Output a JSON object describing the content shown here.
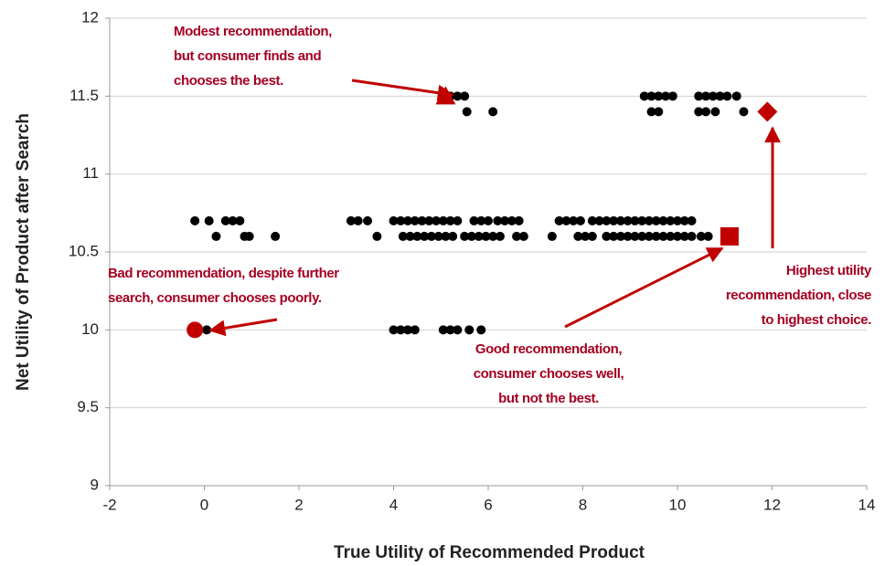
{
  "chart_data": {
    "type": "scatter",
    "xlabel": "True Utility of Recommended Product",
    "ylabel": "Net Utility of Product after Search",
    "xlim": [
      -2,
      14
    ],
    "xticks": [
      -2,
      0,
      2,
      4,
      6,
      8,
      10,
      12,
      14
    ],
    "ylim": [
      9,
      12
    ],
    "yticks": [
      9,
      9.5,
      10,
      10.5,
      11,
      11.5,
      12
    ],
    "grid": true,
    "series": [
      {
        "color": "#000000",
        "marker": "circle",
        "x": [
          -0.2,
          0.1,
          0.45,
          0.6,
          0.75,
          3.1,
          3.25,
          3.45,
          4.0,
          4.15,
          4.3,
          4.45,
          4.6,
          4.75,
          4.9,
          5.05,
          5.2,
          5.35,
          5.7,
          5.85,
          6.0,
          6.2,
          6.35,
          6.5,
          6.65,
          7.5,
          7.65,
          7.8,
          7.95,
          8.2,
          8.35,
          8.5,
          8.65,
          8.8,
          8.95,
          9.1,
          9.25,
          9.4,
          9.55,
          9.7,
          9.85,
          10.0,
          10.15,
          10.3
        ],
        "values": [
          10.7,
          10.7,
          10.7,
          10.7,
          10.7,
          10.7,
          10.7,
          10.7,
          10.7,
          10.7,
          10.7,
          10.7,
          10.7,
          10.7,
          10.7,
          10.7,
          10.7,
          10.7,
          10.7,
          10.7,
          10.7,
          10.7,
          10.7,
          10.7,
          10.7,
          10.7,
          10.7,
          10.7,
          10.7,
          10.7,
          10.7,
          10.7,
          10.7,
          10.7,
          10.7,
          10.7,
          10.7,
          10.7,
          10.7,
          10.7,
          10.7,
          10.7,
          10.7,
          10.7
        ]
      },
      {
        "color": "#000000",
        "marker": "circle",
        "x": [
          0.25,
          0.85,
          0.95,
          1.5,
          3.65,
          4.2,
          4.35,
          4.5,
          4.65,
          4.8,
          4.95,
          5.1,
          5.25,
          5.5,
          5.65,
          5.8,
          5.95,
          6.1,
          6.25,
          6.6,
          6.75,
          7.35,
          7.9,
          8.05,
          8.2,
          8.5,
          8.65,
          8.8,
          8.95,
          9.1,
          9.25,
          9.4,
          9.55,
          9.7,
          9.85,
          10.0,
          10.15,
          10.3,
          10.5,
          10.65
        ],
        "values": [
          10.6,
          10.6,
          10.6,
          10.6,
          10.6,
          10.6,
          10.6,
          10.6,
          10.6,
          10.6,
          10.6,
          10.6,
          10.6,
          10.6,
          10.6,
          10.6,
          10.6,
          10.6,
          10.6,
          10.6,
          10.6,
          10.6,
          10.6,
          10.6,
          10.6,
          10.6,
          10.6,
          10.6,
          10.6,
          10.6,
          10.6,
          10.6,
          10.6,
          10.6,
          10.6,
          10.6,
          10.6,
          10.6,
          10.6,
          10.6
        ]
      },
      {
        "color": "#000000",
        "marker": "circle",
        "x": [
          5.2,
          5.35,
          5.5,
          9.3,
          9.45,
          9.6,
          9.75,
          9.9,
          10.45,
          10.6,
          10.75,
          10.9,
          11.05,
          11.25
        ],
        "values": [
          11.5,
          11.5,
          11.5,
          11.5,
          11.5,
          11.5,
          11.5,
          11.5,
          11.5,
          11.5,
          11.5,
          11.5,
          11.5,
          11.5
        ]
      },
      {
        "color": "#000000",
        "marker": "circle",
        "x": [
          5.55,
          6.1,
          9.45,
          9.6,
          10.45,
          10.6,
          10.8,
          11.4
        ],
        "values": [
          11.4,
          11.4,
          11.4,
          11.4,
          11.4,
          11.4,
          11.4,
          11.4
        ]
      },
      {
        "color": "#000000",
        "marker": "circle",
        "x": [
          0.05,
          4.0,
          4.15,
          4.3,
          4.45,
          5.05,
          5.2,
          5.35,
          5.6,
          5.85
        ],
        "values": [
          10,
          10,
          10,
          10,
          10,
          10,
          10,
          10,
          10,
          10
        ]
      },
      {
        "color": "#c00000",
        "marker": "big-circle",
        "x": [
          -0.2
        ],
        "values": [
          10
        ]
      },
      {
        "color": "#c00000",
        "marker": "triangle",
        "x": [
          5.1
        ],
        "values": [
          11.5
        ]
      },
      {
        "color": "#c00000",
        "marker": "square",
        "x": [
          11.1
        ],
        "values": [
          10.6
        ]
      },
      {
        "color": "#c00000",
        "marker": "diamond",
        "x": [
          11.9
        ],
        "values": [
          11.4
        ]
      }
    ],
    "annotations": [
      {
        "lines": [
          "Modest recommendation,",
          "but consumer finds and",
          "chooses the best."
        ]
      },
      {
        "lines": [
          "Bad recommendation, despite further",
          "search, consumer chooses poorly."
        ]
      },
      {
        "lines": [
          "Good recommendation,",
          "consumer chooses well,",
          "but not the best."
        ]
      },
      {
        "lines": [
          "Highest utility",
          "recommendation, close",
          "to highest choice."
        ]
      }
    ]
  }
}
